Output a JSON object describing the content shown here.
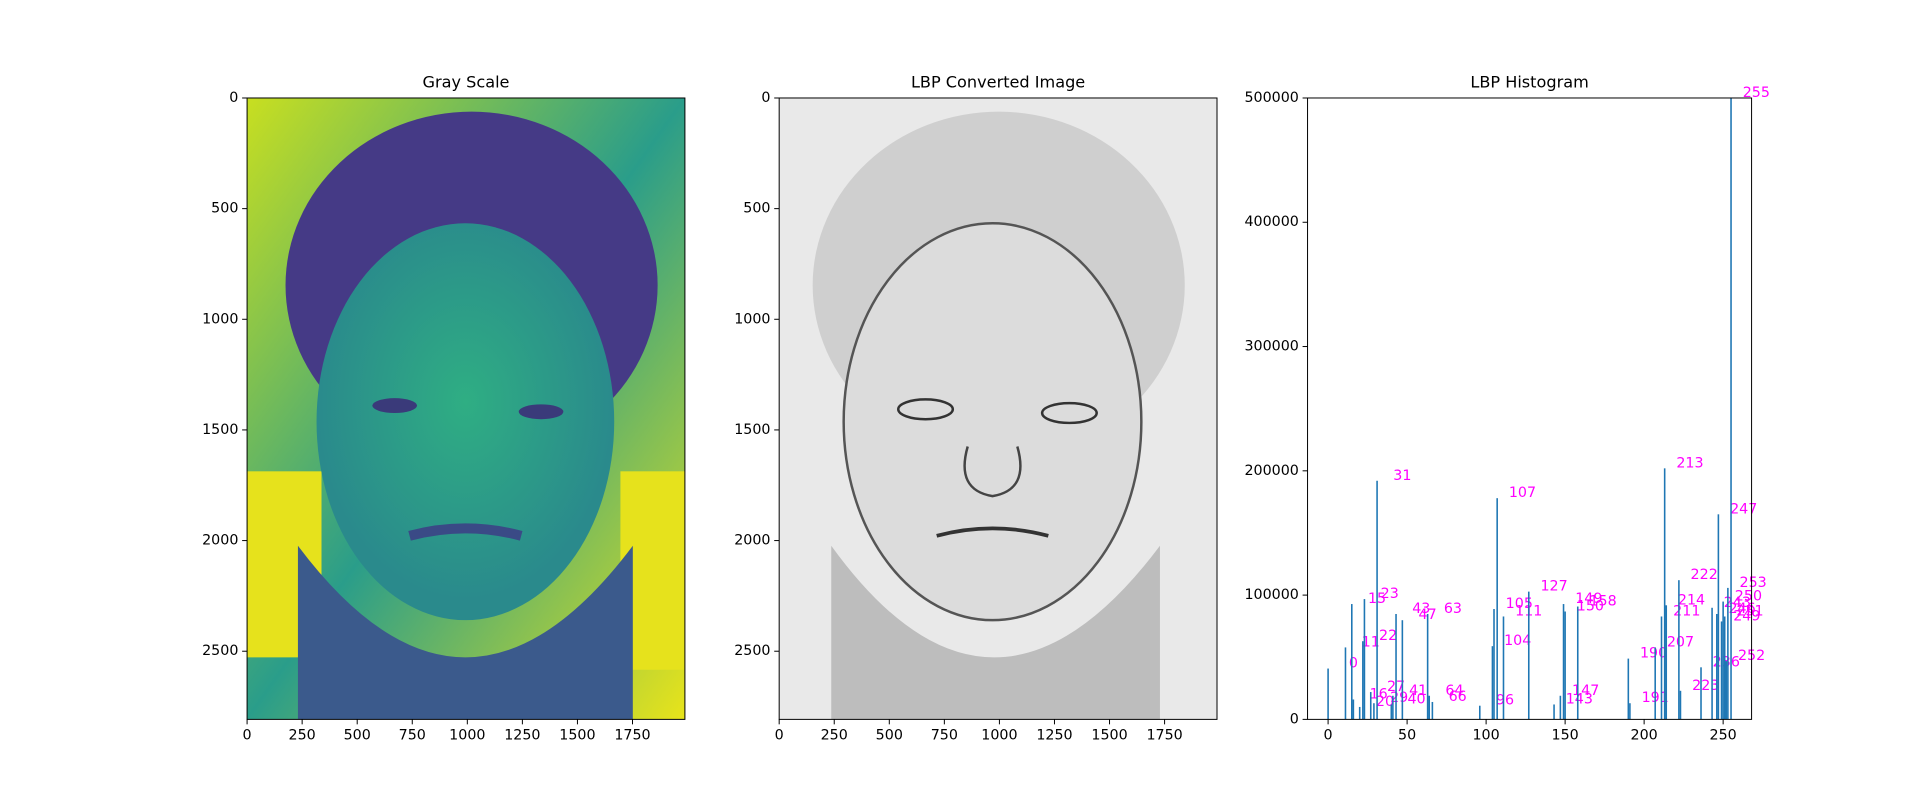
{
  "chart_data": [
    {
      "type": "image",
      "title": "Gray Scale",
      "xlim": [
        0,
        1988
      ],
      "xticks": [
        0,
        250,
        500,
        750,
        1000,
        1250,
        1500,
        1750
      ],
      "ylim": [
        2808,
        0
      ],
      "yticks": [
        0,
        500,
        1000,
        1500,
        2000,
        2500
      ]
    },
    {
      "type": "image",
      "title": "LBP Converted Image",
      "xlim": [
        0,
        1988
      ],
      "xticks": [
        0,
        250,
        500,
        750,
        1000,
        1250,
        1500,
        1750
      ],
      "ylim": [
        2808,
        0
      ],
      "yticks": [
        0,
        500,
        1000,
        1500,
        2000,
        2500
      ]
    },
    {
      "type": "bar",
      "title": "LBP Histogram",
      "color": "#1f77b4",
      "label_color": "#ff00ff",
      "xlim": [
        -13,
        268
      ],
      "xticks": [
        0,
        50,
        100,
        150,
        200,
        250
      ],
      "ylim": [
        0,
        500000
      ],
      "yticks": [
        0,
        100000,
        200000,
        300000,
        400000,
        500000
      ],
      "x": [
        0,
        11,
        15,
        16,
        20,
        22,
        23,
        27,
        29,
        31,
        40,
        41,
        43,
        47,
        63,
        64,
        66,
        96,
        104,
        105,
        107,
        111,
        127,
        143,
        147,
        149,
        150,
        158,
        190,
        191,
        207,
        211,
        213,
        214,
        222,
        223,
        236,
        243,
        246,
        247,
        249,
        250,
        251,
        252,
        253,
        255
      ],
      "values": [
        40900,
        57900,
        92800,
        16000,
        10000,
        62900,
        96800,
        22000,
        13000,
        192000,
        12000,
        19000,
        84800,
        79800,
        84800,
        19000,
        14000,
        11000,
        58900,
        88800,
        178000,
        82800,
        102800,
        12000,
        19000,
        92800,
        86800,
        90800,
        48900,
        13000,
        57900,
        82800,
        202000,
        91800,
        112000,
        23000,
        41900,
        89800,
        84800,
        165000,
        78800,
        94800,
        82800,
        46900,
        105800,
        500000
      ]
    }
  ]
}
